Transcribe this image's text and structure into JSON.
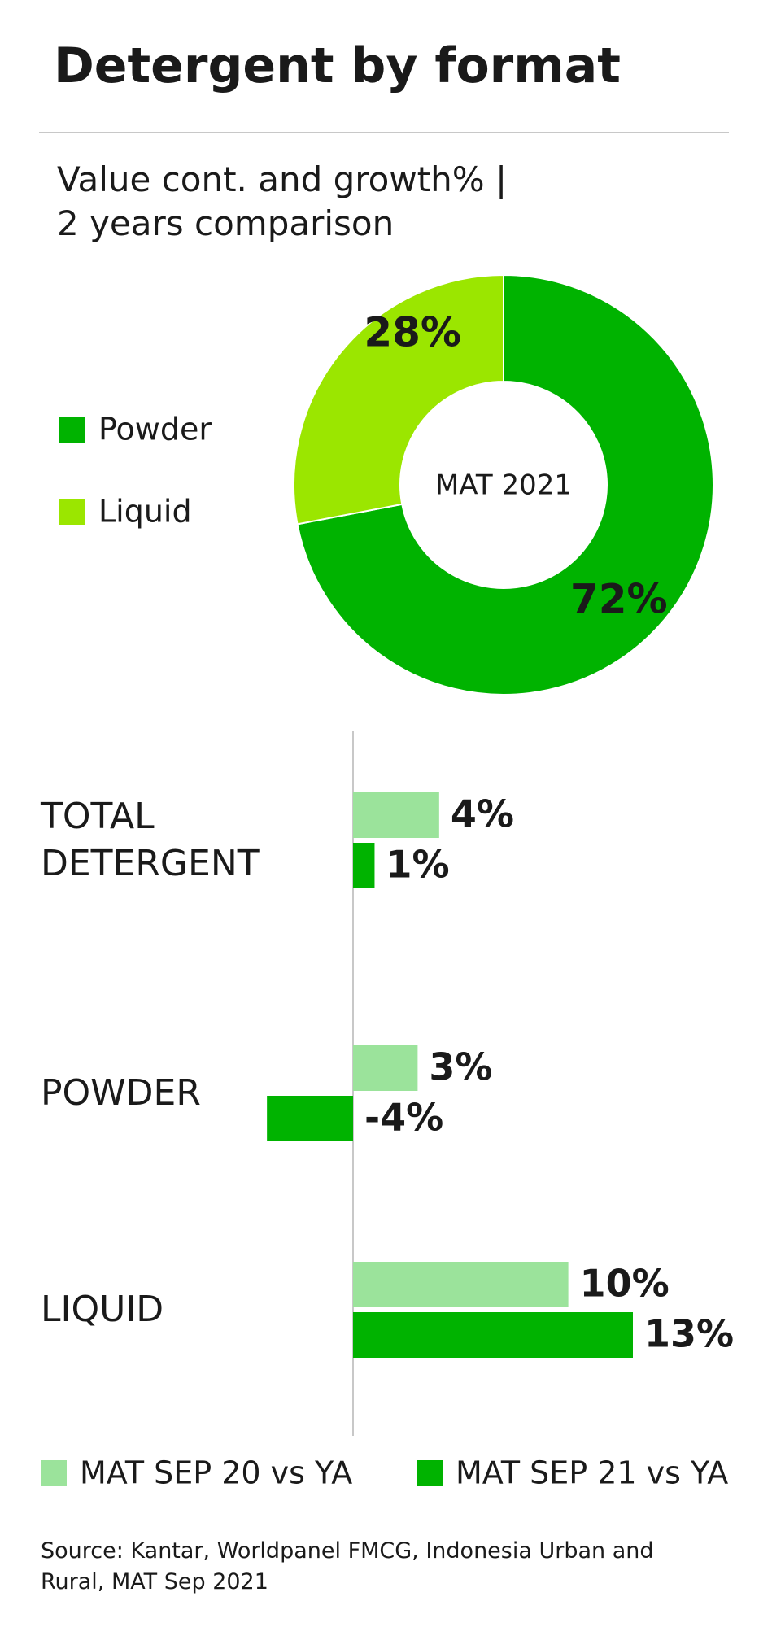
{
  "title": "Detergent by format",
  "subtitle": [
    "Value cont. and growth% |",
    "2 years comparison"
  ],
  "source": "Source: Kantar, Worldpanel FMCG, Indonesia Urban and Rural, MAT Sep 2021",
  "chart_data": [
    {
      "type": "pie",
      "donut": true,
      "center_label": "MAT 2021",
      "categories": [
        "Powder",
        "Liquid"
      ],
      "values": [
        72,
        28
      ],
      "value_labels": [
        "72%",
        "28%"
      ],
      "colors": [
        "#00b300",
        "#9be600"
      ],
      "legend": "left"
    },
    {
      "type": "bar",
      "orientation": "horizontal",
      "categories": [
        "TOTAL DETERGENT",
        "POWDER",
        "LIQUID"
      ],
      "series": [
        {
          "name": "MAT SEP 20 vs YA",
          "color": "#9be39b",
          "values": [
            4,
            3,
            10
          ],
          "value_labels": [
            "4%",
            "3%",
            "10%"
          ]
        },
        {
          "name": "MAT SEP 21 vs YA",
          "color": "#00b300",
          "values": [
            1,
            -4,
            13
          ],
          "value_labels": [
            "1%",
            "-4%",
            "13%"
          ]
        }
      ],
      "legend": "bottom"
    }
  ]
}
